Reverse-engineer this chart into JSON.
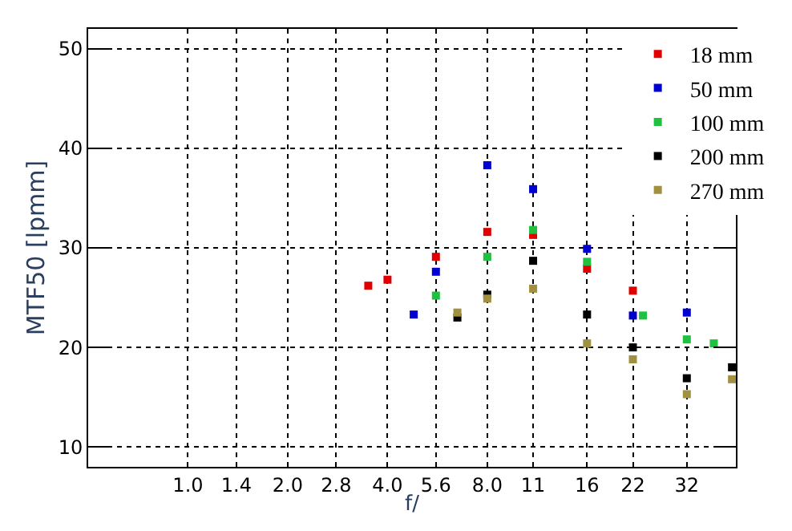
{
  "chart_data": {
    "type": "scatter",
    "xlabel": "f/",
    "ylabel": "MTF50 [lpmm]",
    "log": "x",
    "marker": "square",
    "grid": true,
    "legend": "top right",
    "xlim": [
      0.5,
      45
    ],
    "ylim": [
      8,
      52
    ],
    "xticks": [
      {
        "value": 1,
        "label": "1.0"
      },
      1.4,
      {
        "value": 2,
        "label": "2.0"
      },
      2.8,
      {
        "value": 4,
        "label": "4.0"
      },
      5.6,
      {
        "value": 8,
        "label": "8.0"
      },
      11,
      16,
      22,
      32
    ],
    "yticks": [
      10,
      20,
      30,
      40,
      50
    ],
    "series": [
      {
        "name": "18 mm",
        "color": "#e00000",
        "x": [
          3.5,
          4,
          5.6,
          8,
          11,
          16,
          22
        ],
        "values": [
          26.2,
          26.8,
          29.1,
          31.6,
          31.3,
          27.9,
          25.7
        ]
      },
      {
        "name": "50 mm",
        "color": "#0000d0",
        "x": [
          4.8,
          5.6,
          8,
          11,
          16,
          22,
          32
        ],
        "values": [
          23.3,
          27.6,
          38.3,
          35.9,
          29.9,
          23.2,
          23.5
        ]
      },
      {
        "name": "100 mm",
        "color": "#20c040",
        "x": [
          5.6,
          8,
          11,
          16,
          23.6,
          32,
          38.6
        ],
        "values": [
          25.2,
          29.1,
          31.8,
          28.6,
          23.2,
          20.8,
          20.4
        ]
      },
      {
        "name": "200 mm",
        "color": "#000000",
        "x": [
          6.5,
          8,
          11,
          16,
          22,
          32,
          43.8
        ],
        "values": [
          23.0,
          25.3,
          28.7,
          23.3,
          20.0,
          16.9,
          18.0
        ]
      },
      {
        "name": "270 mm",
        "color": "#a09040",
        "x": [
          6.5,
          8,
          11,
          16,
          22,
          32,
          43.8
        ],
        "values": [
          23.5,
          24.9,
          25.9,
          20.4,
          18.8,
          15.3,
          16.8
        ]
      }
    ]
  }
}
